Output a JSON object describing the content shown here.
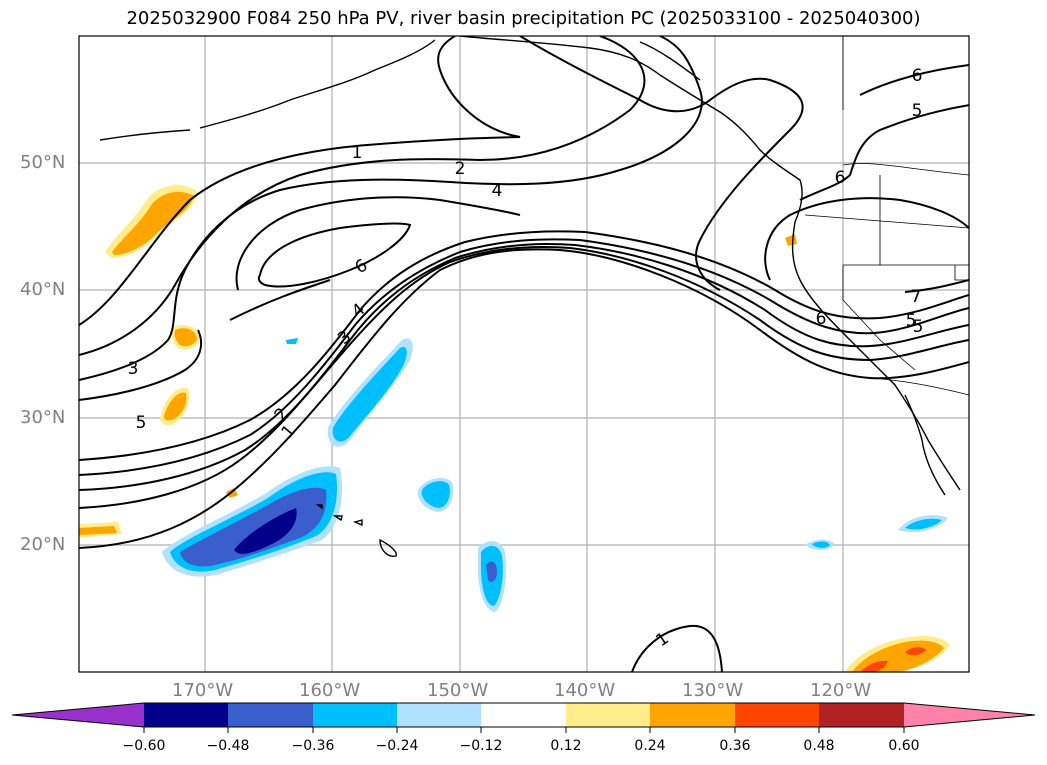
{
  "title": "2025032900 F084 250 hPa PV, river basin precipitation PC (2025033100 - 2025040300)",
  "map": {
    "lat_labels": [
      "50°N",
      "40°N",
      "30°N",
      "20°N"
    ],
    "lon_labels": [
      "170°W",
      "160°W",
      "150°W",
      "140°W",
      "130°W",
      "120°W"
    ],
    "contour_labels": [
      "1",
      "2",
      "4",
      "6",
      "3",
      "5",
      "6",
      "4",
      "3",
      "2",
      "1",
      "5",
      "6",
      "6",
      "5",
      "7",
      "5",
      "1"
    ]
  },
  "colorbar": {
    "ticks": [
      "−0.60",
      "−0.48",
      "−0.36",
      "−0.24",
      "−0.12",
      "0.12",
      "0.24",
      "0.36",
      "0.48",
      "0.60"
    ],
    "colors": [
      "#9932cc",
      "#00008b",
      "#3a5fcd",
      "#00bfff",
      "#b0e2ff",
      "#ffffff",
      "#ffec8b",
      "#ffa500",
      "#ff4500",
      "#b22222",
      "#ff82ab"
    ]
  }
}
